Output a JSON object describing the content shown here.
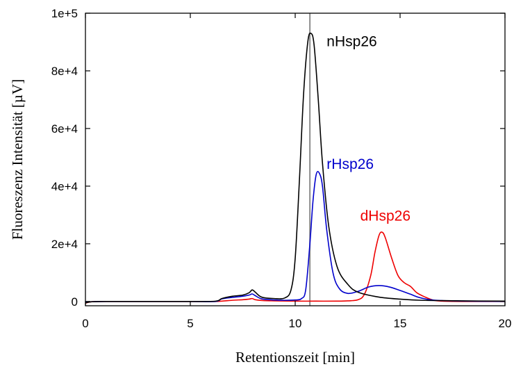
{
  "chart_data": {
    "type": "line",
    "xlabel": "Retentionszeit [min]",
    "ylabel": "Fluoreszenz Intensität [µV]",
    "xlim": [
      0,
      20
    ],
    "ylim": [
      -1500,
      100000
    ],
    "x_ticks": [
      0,
      5,
      10,
      15,
      20
    ],
    "x_tick_labels": [
      "0",
      "5",
      "10",
      "15",
      "20"
    ],
    "y_ticks": [
      0,
      20000,
      40000,
      60000,
      80000,
      100000
    ],
    "y_tick_labels": [
      "0",
      "2e+4",
      "4e+4",
      "6e+4",
      "8e+4",
      "1e+5"
    ],
    "grid": false,
    "reference_line": {
      "x": 10.7,
      "color": "#8c8c8c"
    },
    "series": [
      {
        "name": "nHsp26",
        "color": "#000000",
        "x": [
          0,
          0.3,
          1,
          3,
          5,
          6.2,
          6.5,
          7,
          7.5,
          7.8,
          7.95,
          8.1,
          8.4,
          9,
          9.5,
          9.8,
          10,
          10.2,
          10.4,
          10.6,
          10.75,
          10.9,
          11.1,
          11.3,
          11.6,
          12,
          12.5,
          13,
          14,
          15,
          16,
          18,
          20
        ],
        "values": [
          -500,
          -100,
          0,
          0,
          0,
          100,
          1000,
          1800,
          2200,
          3000,
          4000,
          3200,
          1500,
          1000,
          1200,
          4000,
          15000,
          42000,
          72000,
          90000,
          93000,
          89000,
          70000,
          48000,
          26000,
          12000,
          6000,
          3200,
          1500,
          800,
          400,
          200,
          100
        ]
      },
      {
        "name": "rHsp26",
        "color": "#0000cc",
        "x": [
          0,
          0.3,
          1,
          3,
          5,
          6.2,
          6.5,
          7,
          7.5,
          7.8,
          7.95,
          8.1,
          8.4,
          9,
          9.5,
          10,
          10.3,
          10.5,
          10.7,
          10.85,
          11,
          11.15,
          11.3,
          11.5,
          11.8,
          12.1,
          12.5,
          13,
          13.5,
          14,
          14.5,
          15,
          15.5,
          16,
          17,
          20
        ],
        "values": [
          -300,
          -100,
          0,
          0,
          0,
          0,
          900,
          1400,
          1800,
          2200,
          2600,
          2000,
          900,
          500,
          400,
          500,
          1000,
          4000,
          20000,
          35000,
          44000,
          44500,
          40000,
          25000,
          10000,
          4500,
          2800,
          3500,
          5000,
          5500,
          5000,
          3800,
          2500,
          1200,
          300,
          0
        ]
      },
      {
        "name": "dHsp26",
        "color": "#ee0000",
        "x": [
          0,
          0.3,
          1,
          3,
          5,
          6.2,
          7,
          7.5,
          7.8,
          7.95,
          8.1,
          8.5,
          9,
          10,
          11,
          12,
          12.5,
          13,
          13.3,
          13.6,
          13.8,
          14,
          14.15,
          14.3,
          14.6,
          14.9,
          15.2,
          15.5,
          15.8,
          16.2,
          16.6,
          17,
          18,
          20
        ],
        "values": [
          -600,
          -100,
          0,
          0,
          0,
          0,
          400,
          600,
          800,
          1000,
          600,
          300,
          200,
          100,
          100,
          100,
          200,
          600,
          2500,
          9000,
          17000,
          23000,
          24000,
          22000,
          15000,
          9000,
          6500,
          5200,
          3000,
          1500,
          400,
          100,
          0,
          0
        ]
      }
    ],
    "annotations": [
      {
        "text": "nHsp26",
        "x": 11.5,
        "y": 88500,
        "color": "#000000"
      },
      {
        "text": "rHsp26",
        "x": 11.5,
        "y": 46000,
        "color": "#0000cc"
      },
      {
        "text": "dHsp26",
        "x": 13.1,
        "y": 28000,
        "color": "#ee0000"
      }
    ]
  }
}
